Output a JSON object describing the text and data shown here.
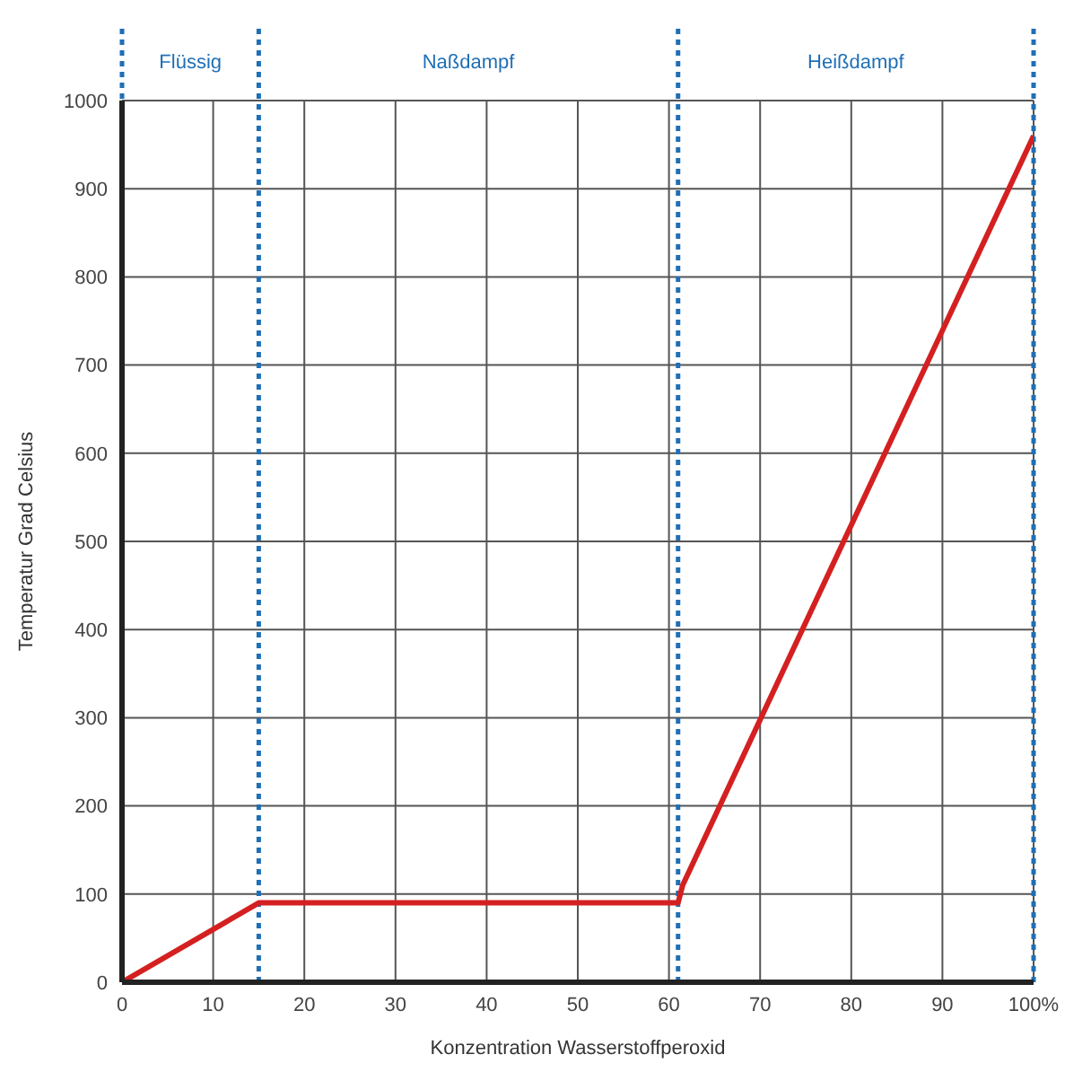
{
  "chart_data": {
    "type": "line",
    "xlabel": "Konzentration Wasserstoffperoxid",
    "ylabel": "Temperatur Grad Celsius",
    "x": [
      0,
      15,
      61,
      61.5,
      100
    ],
    "series": [
      {
        "color": "#d42020",
        "values": [
          0,
          90,
          90,
          110,
          960
        ]
      }
    ],
    "xlim": [
      0,
      100
    ],
    "xticks": [
      0,
      10,
      20,
      30,
      40,
      50,
      60,
      70,
      80,
      90,
      {
        "value": 100,
        "label": "100%"
      }
    ],
    "ylim": [
      0,
      1000
    ],
    "yticks": [
      0,
      100,
      200,
      300,
      400,
      500,
      600,
      700,
      800,
      900,
      1000
    ],
    "grid": true,
    "marker": "none",
    "line_style": "solid",
    "legend": false,
    "ref_lines": [
      {
        "axis": "x",
        "value": 0,
        "color": "#1f6fb5",
        "line_style": "dotted"
      },
      {
        "axis": "x",
        "value": 15,
        "color": "#1f6fb5",
        "line_style": "dotted"
      },
      {
        "axis": "x",
        "value": 61,
        "color": "#1f6fb5",
        "line_style": "dotted"
      },
      {
        "axis": "x",
        "value": 100,
        "color": "#1f6fb5",
        "line_style": "dotted"
      }
    ],
    "annotations": [
      "Flüssig",
      "Naßdampf",
      "Heißdampf"
    ]
  }
}
